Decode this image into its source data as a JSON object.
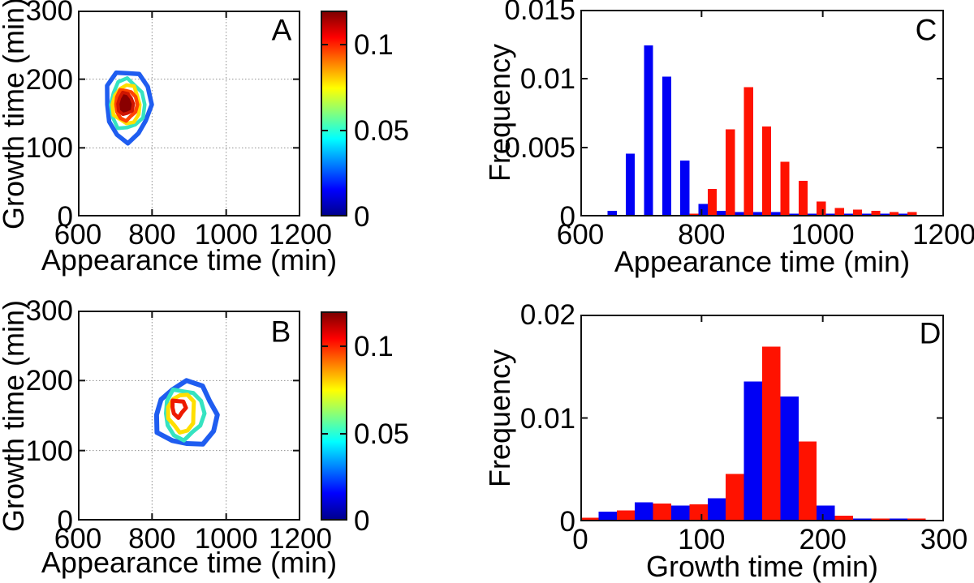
{
  "colors": {
    "series_blue": "#0000f5",
    "series_red": "#ff1200",
    "axis": "#111111",
    "grid": "#909090",
    "colorbar_gradient": [
      "#00008f",
      "#0000ff",
      "#00ffff",
      "#ffff00",
      "#ff0000",
      "#800000"
    ]
  },
  "chart_data": [
    {
      "id": "A",
      "type": "contour",
      "panel_label": "A",
      "xlabel": "Appearance time (min)",
      "ylabel": "Growth time (min)",
      "xlim": [
        600,
        1200
      ],
      "ylim": [
        0,
        300
      ],
      "xticks": [
        {
          "v": 600,
          "label": "600"
        },
        {
          "v": 800,
          "label": "800"
        },
        {
          "v": 1000,
          "label": "1000"
        },
        {
          "v": 1200,
          "label": "1200"
        }
      ],
      "yticks": [
        {
          "v": 0,
          "label": "0"
        },
        {
          "v": 100,
          "label": "100"
        },
        {
          "v": 200,
          "label": "200"
        },
        {
          "v": 300,
          "label": "300"
        }
      ],
      "grid": true,
      "contour_peak": {
        "appearance_time": 727,
        "growth_time": 164,
        "density": 0.12
      },
      "rings": [
        {
          "level": 0.02,
          "color": "#1f5df0",
          "cx": 735,
          "cy": 163,
          "rx": 60,
          "ry": 51,
          "w": 5.5,
          "ph": 0.5,
          "n": 12,
          "amp": 0.08
        },
        {
          "level": 0.04,
          "color": "#35e3c1",
          "cx": 733,
          "cy": 163,
          "rx": 46,
          "ry": 36,
          "w": 4.5,
          "ph": 2.2,
          "n": 12,
          "amp": 0.08
        },
        {
          "level": 0.06,
          "color": "#ffdf00",
          "cx": 731,
          "cy": 163,
          "rx": 37,
          "ry": 28,
          "w": 4.5,
          "ph": 4.1,
          "n": 12,
          "amp": 0.08
        },
        {
          "level": 0.08,
          "color": "#ff4400",
          "cx": 730,
          "cy": 163,
          "rx": 29,
          "ry": 22,
          "w": 4.5,
          "ph": 1.1,
          "n": 12,
          "amp": 0.08
        },
        {
          "level": 0.1,
          "color": "#cf1500",
          "cx": 728,
          "cy": 164,
          "rx": 21,
          "ry": 16,
          "w": 4,
          "ph": 2.6,
          "n": 10,
          "amp": 0.1,
          "fill": "#8a0000"
        }
      ],
      "colorbar": {
        "max": 0.12,
        "ticks": [
          {
            "v": 0.1,
            "label": "0.1"
          },
          {
            "v": 0.05,
            "label": "0.05"
          },
          {
            "v": 0,
            "label": "0"
          }
        ]
      }
    },
    {
      "id": "C",
      "type": "bar",
      "panel_label": "C",
      "xlabel": "Appearance time (min)",
      "ylabel": "Frequency",
      "xlim": [
        600,
        1200
      ],
      "ylim": [
        0,
        0.015
      ],
      "xticks": [
        {
          "v": 600,
          "label": "600"
        },
        {
          "v": 800,
          "label": "800"
        },
        {
          "v": 1000,
          "label": "1000"
        },
        {
          "v": 1200,
          "label": "1200"
        }
      ],
      "yticks": [
        {
          "v": 0,
          "label": "0"
        },
        {
          "v": 0.005,
          "label": "0.005"
        },
        {
          "v": 0.01,
          "label": "0.01"
        },
        {
          "v": 0.015,
          "label": "0.015"
        }
      ],
      "grid": false,
      "bin_width_min": 15,
      "bin_centers": [
        660,
        690,
        720,
        750,
        780,
        810,
        840,
        870,
        900,
        930,
        960,
        990,
        1020,
        1050,
        1080,
        1110,
        1140
      ],
      "series": [
        {
          "name": "blue",
          "color": "#0000f5",
          "values": [
            0.0003,
            0.0045,
            0.0125,
            0.0102,
            0.004,
            0.0008,
            0.0003,
            0.0002,
            0.0002,
            0.0002,
            0.0001,
            0.0001,
            0.0001,
            0.0001,
            0.0001,
            0.0001,
            0.0001
          ]
        },
        {
          "name": "red",
          "color": "#ff1200",
          "values": [
            0,
            0,
            0,
            0,
            0.0001,
            0.0019,
            0.0063,
            0.0094,
            0.0065,
            0.0039,
            0.0025,
            0.001,
            0.0005,
            0.0004,
            0.0003,
            0.0002,
            0.0002
          ]
        }
      ]
    },
    {
      "id": "B",
      "type": "contour",
      "panel_label": "B",
      "xlabel": "Appearance time (min)",
      "ylabel": "Growth time (min)",
      "xlim": [
        600,
        1200
      ],
      "ylim": [
        0,
        300
      ],
      "xticks": [
        {
          "v": 600,
          "label": "600"
        },
        {
          "v": 800,
          "label": "800"
        },
        {
          "v": 1000,
          "label": "1000"
        },
        {
          "v": 1200,
          "label": "1200"
        }
      ],
      "yticks": [
        {
          "v": 0,
          "label": "0"
        },
        {
          "v": 100,
          "label": "100"
        },
        {
          "v": 200,
          "label": "200"
        },
        {
          "v": 300,
          "label": "300"
        }
      ],
      "grid": true,
      "contour_peak": {
        "appearance_time": 871,
        "growth_time": 158,
        "density": 0.1
      },
      "rings": [
        {
          "level": 0.02,
          "color": "#1f5df0",
          "cx": 893,
          "cy": 151,
          "rx": 82,
          "ry": 45,
          "w": 6,
          "ph": 3.6,
          "n": 12,
          "amp": 0.09
        },
        {
          "level": 0.04,
          "color": "#35e3c1",
          "cx": 886,
          "cy": 153,
          "rx": 52,
          "ry": 35,
          "w": 5,
          "ph": 1.0,
          "n": 12,
          "amp": 0.09
        },
        {
          "level": 0.06,
          "color": "#ffdf00",
          "cx": 880,
          "cy": 154,
          "rx": 36,
          "ry": 27,
          "w": 5,
          "ph": 5.2,
          "n": 11,
          "amp": 0.09
        },
        {
          "level": 0.08,
          "color": "#ee1a00",
          "cx": 871,
          "cy": 161,
          "rx": 18,
          "ry": 12,
          "w": 5,
          "ph": 0.3,
          "n": 8,
          "amp": 0.16
        }
      ],
      "colorbar": {
        "max": 0.12,
        "ticks": [
          {
            "v": 0.1,
            "label": "0.1"
          },
          {
            "v": 0.05,
            "label": "0.05"
          },
          {
            "v": 0,
            "label": "0"
          }
        ]
      }
    },
    {
      "id": "D",
      "type": "bar",
      "panel_label": "D",
      "xlabel": "Growth time (min)",
      "ylabel": "Frequency",
      "xlim": [
        0,
        300
      ],
      "ylim": [
        0,
        0.02
      ],
      "xticks": [
        {
          "v": 0,
          "label": "0"
        },
        {
          "v": 100,
          "label": "100"
        },
        {
          "v": 200,
          "label": "200"
        },
        {
          "v": 300,
          "label": "300"
        }
      ],
      "yticks": [
        {
          "v": 0,
          "label": "0"
        },
        {
          "v": 0.01,
          "label": "0.01"
        },
        {
          "v": 0.02,
          "label": "0.02"
        }
      ],
      "grid": false,
      "bin_width_min": 15,
      "bin_centers": [
        0,
        30,
        60,
        90,
        120,
        150,
        180,
        210,
        240,
        270
      ],
      "series": [
        {
          "name": "blue",
          "color": "#0000f5",
          "values": [
            0.0002,
            0.0008,
            0.0017,
            0.0014,
            0.0021,
            0.0136,
            0.0121,
            0.0014,
            0.0001,
            0.0001
          ]
        },
        {
          "name": "red",
          "color": "#ff1200",
          "values": [
            0.0002,
            0.0009,
            0.0016,
            0.0015,
            0.0045,
            0.017,
            0.0077,
            0.0004,
            0.0001,
            0.0001
          ]
        }
      ]
    }
  ]
}
